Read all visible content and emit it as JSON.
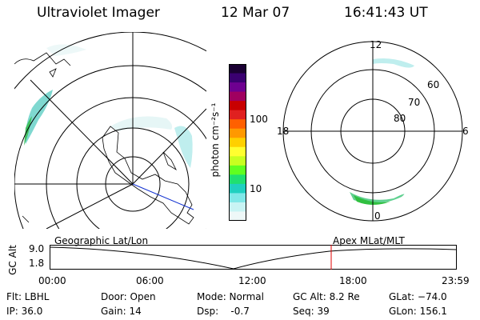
{
  "header": {
    "instrument": "Ultraviolet Imager",
    "date": "12 Mar 07",
    "time": "16:41:43 UT"
  },
  "colorbar": {
    "unit_label": "photon cm⁻²s⁻¹",
    "tick_100": "100",
    "tick_10": "10",
    "colors": [
      "#1a0033",
      "#3a0070",
      "#6e0090",
      "#a00060",
      "#c80000",
      "#e02020",
      "#ff6000",
      "#ff9900",
      "#ffd000",
      "#ffff30",
      "#c8ff20",
      "#60ff20",
      "#20e070",
      "#20d0c0",
      "#80e8e8",
      "#c8f4f4",
      "#eef8f8"
    ]
  },
  "geo_map": {
    "label": "Geographic Lat/Lon"
  },
  "polar_map": {
    "label": "Apex MLat/MLT",
    "mlt_top": "12",
    "mlt_bottom": "0",
    "mlt_left": "18",
    "mlt_right": "6",
    "lat_60": "60",
    "lat_70": "70",
    "lat_80": "80"
  },
  "altitude_plot": {
    "ylabel": "GC Alt",
    "y_top": "9.0",
    "y_bottom": "1.8",
    "x_ticks": [
      "00:00",
      "06:00",
      "12:00",
      "18:00",
      "23:59"
    ],
    "marker_time": "16:41:43",
    "marker_color": "#e00000"
  },
  "status": {
    "filter": "Flt: LBHL",
    "ip": "IP: 36.0",
    "door": "Door: Open",
    "gain": "Gain: 14",
    "mode": "Mode: Normal",
    "dsp": "Dsp:    -0.7",
    "gc_alt": "GC Alt: 8.2 Re",
    "seq": "Seq: 39",
    "glat": "GLat: −74.0",
    "glon": "GLon: 156.1"
  }
}
